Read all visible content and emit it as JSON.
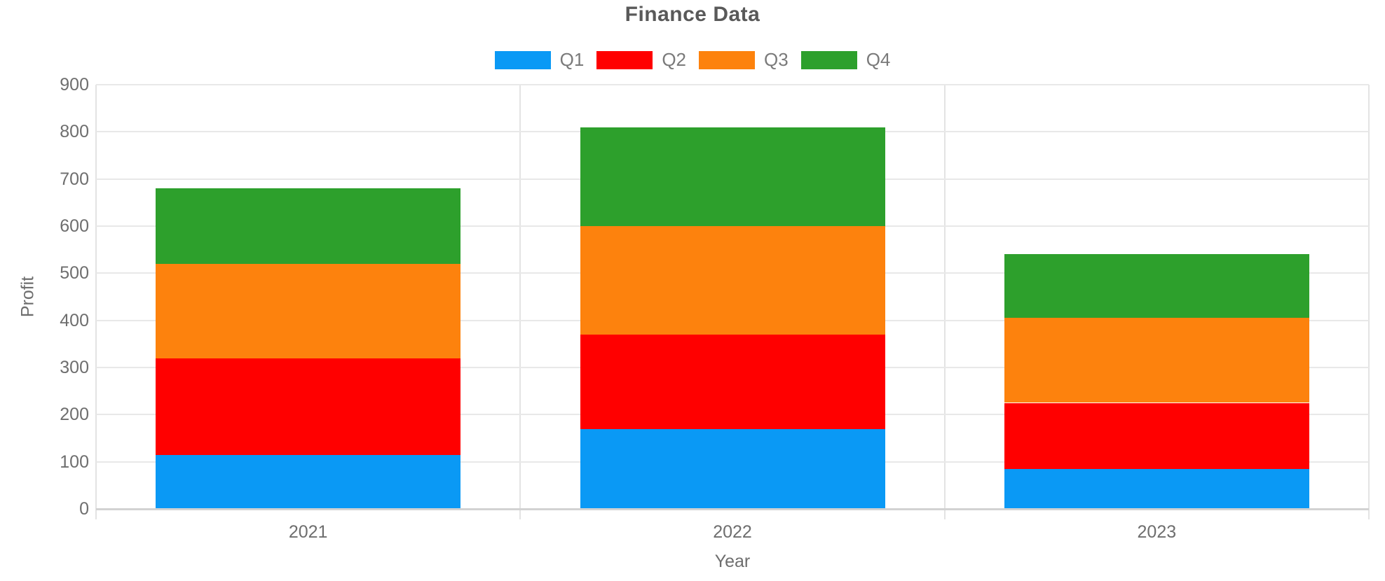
{
  "chart_data": {
    "type": "bar",
    "stacked": true,
    "title": "Finance Data",
    "xlabel": "Year",
    "ylabel": "Profit",
    "categories": [
      "2021",
      "2022",
      "2023"
    ],
    "series": [
      {
        "name": "Q1",
        "color": "#0a99f5",
        "values": [
          115,
          170,
          85
        ]
      },
      {
        "name": "Q2",
        "color": "#ff0000",
        "values": [
          205,
          200,
          140
        ]
      },
      {
        "name": "Q3",
        "color": "#fd820d",
        "values": [
          200,
          230,
          180
        ]
      },
      {
        "name": "Q4",
        "color": "#2da02c",
        "values": [
          160,
          210,
          135
        ]
      }
    ],
    "stack_totals": [
      680,
      810,
      540
    ],
    "ylim": [
      0,
      900
    ],
    "ytick_step": 100,
    "yticks": [
      0,
      100,
      200,
      300,
      400,
      500,
      600,
      700,
      800,
      900
    ],
    "grid": true,
    "legend_position": "top"
  },
  "colors": {
    "title_text": "#595959",
    "axis_text": "#6e6e6e",
    "legend_text": "#7a7a7a",
    "gridline": "#e8e8e8",
    "axis_baseline": "#d2d2d2"
  }
}
